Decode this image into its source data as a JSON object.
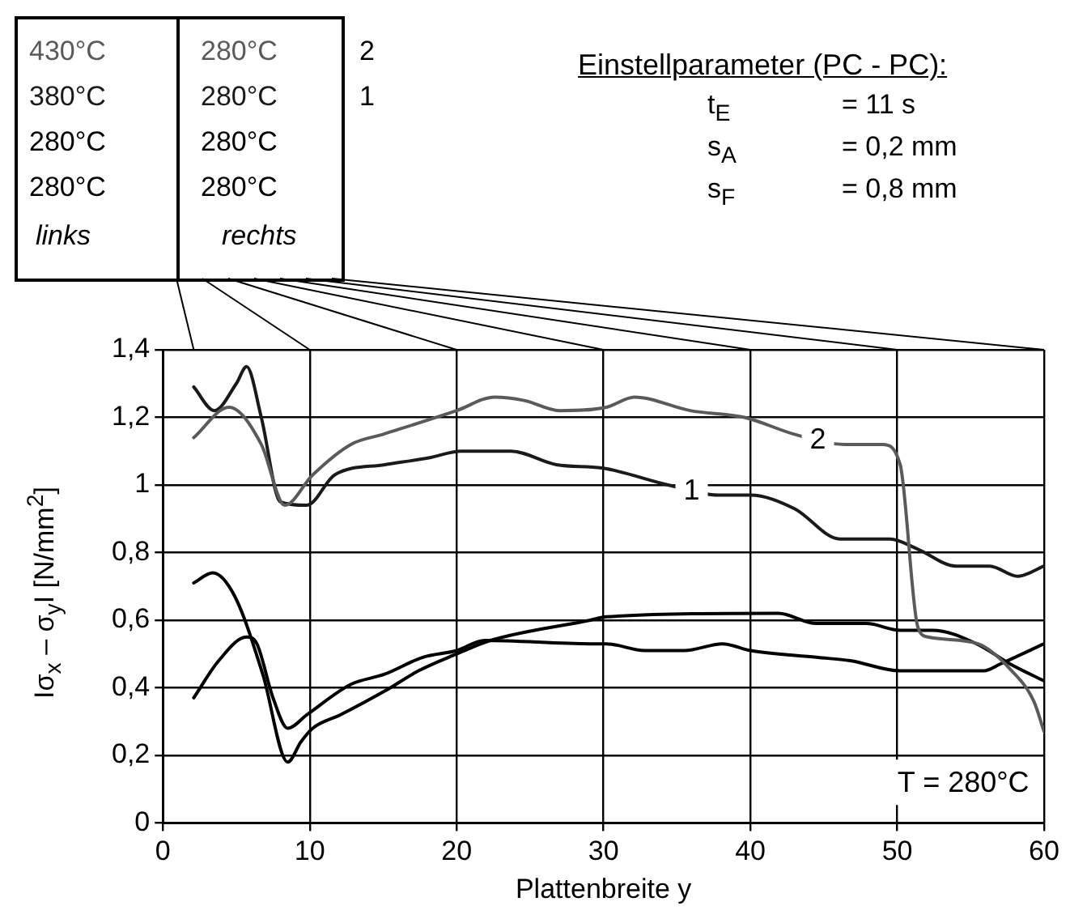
{
  "chart_data": {
    "type": "line",
    "xlabel": "Plattenbreite y",
    "ylabel": "Iσ$_{x}$ – σ$_{y}$I [N/mm$^{2}$]",
    "series": [
      {
        "name": "2",
        "color": "#5a5a5a",
        "x": [
          2.1,
          4.5,
          6.7,
          8.3,
          10.2,
          12.8,
          15,
          20,
          22.6,
          24.6,
          27,
          30.2,
          32.1,
          35.9,
          39.6,
          43,
          46.4,
          49,
          50.2,
          51.4,
          52.1,
          55.5,
          57.8,
          59.3,
          60
        ],
        "values": [
          1.14,
          1.23,
          1.12,
          0.94,
          1.03,
          1.12,
          1.15,
          1.22,
          1.26,
          1.25,
          1.22,
          1.23,
          1.26,
          1.22,
          1.2,
          1.15,
          1.12,
          1.12,
          1.06,
          0.58,
          0.55,
          0.53,
          0.45,
          0.36,
          0.27
        ]
      },
      {
        "name": "1",
        "color": "#1a1a1a",
        "x": [
          2.1,
          3.5,
          5,
          5.7,
          6.7,
          8,
          9.8,
          11.7,
          15.1,
          18.1,
          20.3,
          23.7,
          26.8,
          29.9,
          34.4,
          37.8,
          40,
          43,
          46.1,
          49.5,
          51.4,
          54,
          56.3,
          58.2,
          60
        ],
        "values": [
          1.29,
          1.22,
          1.3,
          1.35,
          1.2,
          0.95,
          0.94,
          1.03,
          1.06,
          1.08,
          1.1,
          1.1,
          1.06,
          1.05,
          1,
          0.97,
          0.97,
          0.93,
          0.84,
          0.84,
          0.81,
          0.76,
          0.76,
          0.73,
          0.76
        ]
      },
      {
        "color": "#000000",
        "x": [
          2.1,
          3.4,
          4.9,
          6.8,
          8.5,
          9.4,
          10.2,
          12.1,
          15.1,
          17.4,
          20,
          22.3,
          29.1,
          30.2,
          41.9,
          44.5,
          47.9,
          50.2,
          52.4,
          55.4,
          57.7,
          60
        ],
        "values": [
          0.71,
          0.74,
          0.67,
          0.44,
          0.18,
          0.24,
          0.28,
          0.32,
          0.39,
          0.45,
          0.5,
          0.54,
          0.6,
          0.61,
          0.62,
          0.59,
          0.59,
          0.57,
          0.57,
          0.53,
          0.47,
          0.42
        ]
      },
      {
        "color": "#000000",
        "x": [
          2.1,
          3.8,
          5.7,
          6.4,
          7.5,
          8.5,
          9.8,
          12.8,
          15.1,
          17.7,
          20,
          21.9,
          29.1,
          30.2,
          32.8,
          35.5,
          38.1,
          40,
          44.5,
          46.8,
          50.2,
          55.9,
          57,
          60
        ],
        "values": [
          0.37,
          0.48,
          0.55,
          0.53,
          0.37,
          0.28,
          0.32,
          0.41,
          0.44,
          0.49,
          0.51,
          0.54,
          0.53,
          0.53,
          0.51,
          0.51,
          0.53,
          0.51,
          0.49,
          0.48,
          0.45,
          0.45,
          0.47,
          0.53
        ]
      }
    ],
    "xlim": [
      0,
      60
    ],
    "xticks": [
      0,
      10,
      20,
      30,
      40,
      50,
      60
    ],
    "ylim": [
      0,
      1.4
    ],
    "yticks": [
      0,
      {
        "value": 0.2,
        "label": "0,2"
      },
      {
        "value": 0.4,
        "label": "0,4"
      },
      {
        "value": 0.6,
        "label": "0,6"
      },
      {
        "value": 0.8,
        "label": "0,8"
      },
      1,
      {
        "value": 1.2,
        "label": "1,2"
      },
      {
        "value": 1.4,
        "label": "1,4"
      }
    ],
    "grid": true,
    "legend": false,
    "marker": "none",
    "line_style": "solid",
    "annotations": [
      "430°C",
      "280°C",
      "380°C",
      "280°C",
      "280°C",
      "280°C",
      "280°C",
      "280°C",
      "links",
      "rechts",
      "Einstellparameter (PC - PC):",
      "t$_{E}$",
      "= 11 s",
      "s$_{A}$",
      "= 0,2 mm",
      "s$_{F}$",
      "= 0,8 mm",
      "T = 280°C"
    ]
  }
}
